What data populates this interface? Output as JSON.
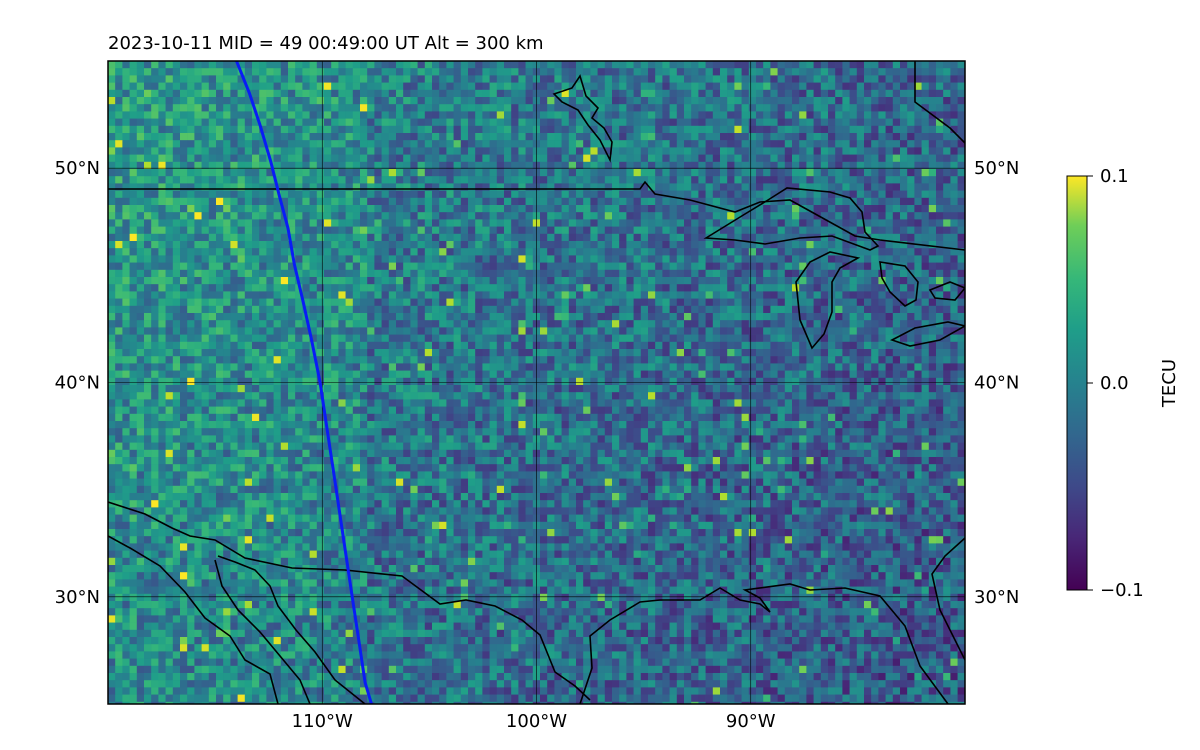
{
  "title": "2023-10-11  MID =  49    00:49:00  UT  Alt = 300 km",
  "map": {
    "lon_range": [
      -120,
      -80
    ],
    "lat_range": [
      25,
      55
    ],
    "lat_ticks": [
      {
        "value": 50,
        "label": "50°N"
      },
      {
        "value": 40,
        "label": "40°N"
      },
      {
        "value": 30,
        "label": "30°N"
      }
    ],
    "lon_ticks": [
      {
        "value": -110,
        "label": "110°W"
      },
      {
        "value": -100,
        "label": "100°W"
      },
      {
        "value": -90,
        "label": "90°W"
      }
    ],
    "gridlines": true,
    "colormap": "viridis",
    "trajectory": {
      "color": "#0a1cf5",
      "points": [
        [
          -114.0,
          55.0
        ],
        [
          -113.4,
          53.5
        ],
        [
          -112.9,
          52.0
        ],
        [
          -112.4,
          50.3
        ],
        [
          -112.0,
          48.7
        ],
        [
          -111.6,
          47.2
        ],
        [
          -111.3,
          45.5
        ],
        [
          -110.9,
          43.8
        ],
        [
          -110.5,
          42.0
        ],
        [
          -110.1,
          40.0
        ],
        [
          -109.8,
          38.0
        ],
        [
          -109.5,
          36.0
        ],
        [
          -109.2,
          34.0
        ],
        [
          -108.9,
          32.0
        ],
        [
          -108.6,
          30.0
        ],
        [
          -108.3,
          28.0
        ],
        [
          -108.0,
          26.0
        ],
        [
          -107.7,
          25.0
        ]
      ]
    }
  },
  "colorbar": {
    "label": "TECU",
    "min": -0.1,
    "max": 0.1,
    "ticks": [
      {
        "value": 0.1,
        "label": "0.1"
      },
      {
        "value": 0.0,
        "label": "0.0"
      },
      {
        "value": -0.1,
        "label": "−0.1"
      }
    ]
  }
}
